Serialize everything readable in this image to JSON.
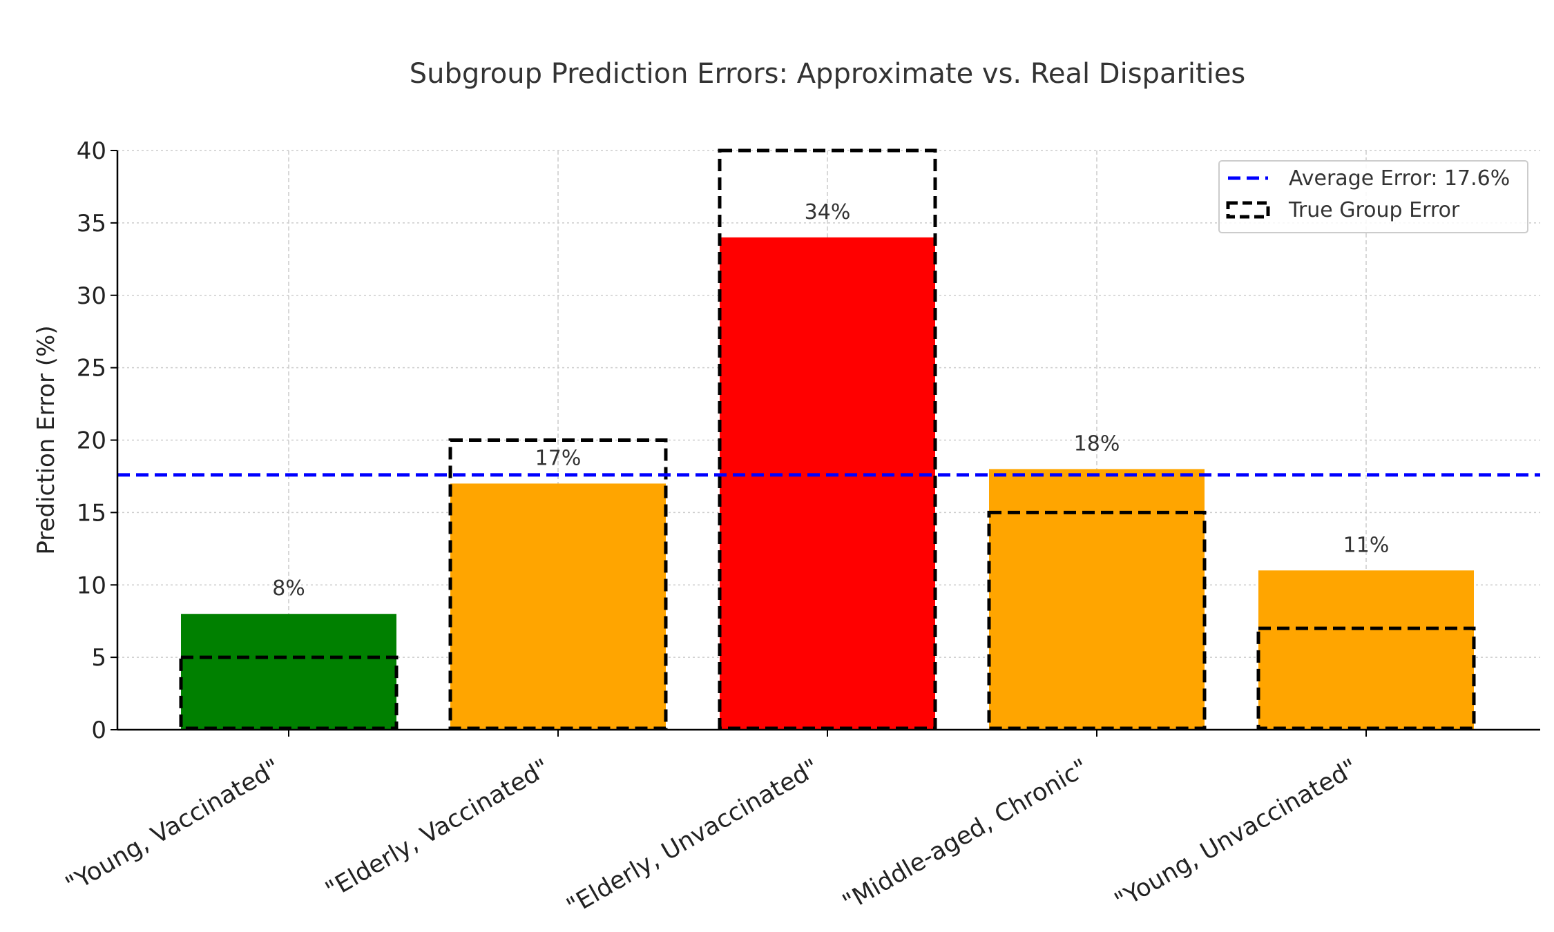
{
  "chart_data": {
    "type": "bar",
    "title": "Subgroup Prediction Errors: Approximate vs. Real Disparities",
    "xlabel": "",
    "ylabel": "Prediction Error (%)",
    "ylim": [
      0,
      40
    ],
    "yticks": [
      "0",
      "5",
      "10",
      "15",
      "20",
      "25",
      "30",
      "35",
      "40"
    ],
    "categories": [
      "\"Young, Vaccinated\"",
      "\"Elderly, Vaccinated\"",
      "\"Elderly, Unvaccinated\"",
      "\"Middle-aged, Chronic\"",
      "\"Young, Unvaccinated\""
    ],
    "values": [
      8,
      17,
      34,
      18,
      11
    ],
    "data_labels": [
      "8%",
      "17%",
      "34%",
      "18%",
      "11%"
    ],
    "bar_colors": [
      "#008000",
      "#FFA500",
      "#FF0000",
      "#FFA500",
      "#FFA500"
    ],
    "true_group_error": [
      5,
      20,
      40,
      15,
      7
    ],
    "average_error": 17.6,
    "grid": true,
    "legend": {
      "position": "top-right",
      "entries": [
        "Average Error: 17.6%",
        "True Group Error"
      ]
    },
    "colors": {
      "average_line": "#0000FF",
      "true_outline": "#000000"
    }
  }
}
